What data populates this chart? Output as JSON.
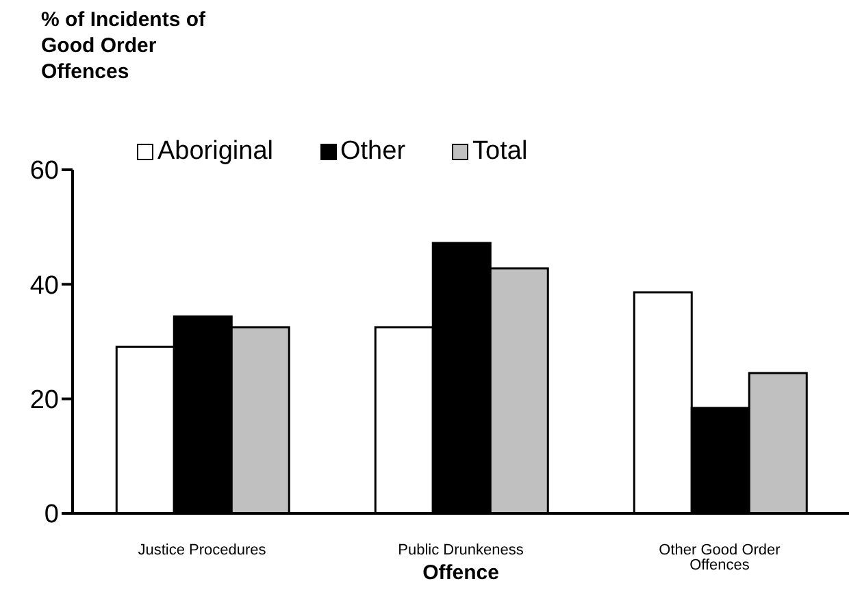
{
  "chart_data": {
    "type": "bar",
    "ylabel": "% of Incidents of Good Order Offences",
    "xlabel": "Offence",
    "categories": [
      "Justice Procedures",
      "Public Drunkeness",
      "Other Good Order Offences"
    ],
    "series": [
      {
        "name": "Aboriginal",
        "color": "#ffffff",
        "values": [
          29.1,
          32.5,
          38.6
        ]
      },
      {
        "name": "Other",
        "color": "#000000",
        "values": [
          34.4,
          47.2,
          18.4
        ]
      },
      {
        "name": "Total",
        "color": "#c0c0c0",
        "values": [
          32.5,
          42.8,
          24.5
        ]
      }
    ],
    "ylim": [
      0,
      60
    ],
    "yticks": [
      0,
      20,
      40,
      60
    ],
    "grid": false,
    "legend": "top"
  }
}
